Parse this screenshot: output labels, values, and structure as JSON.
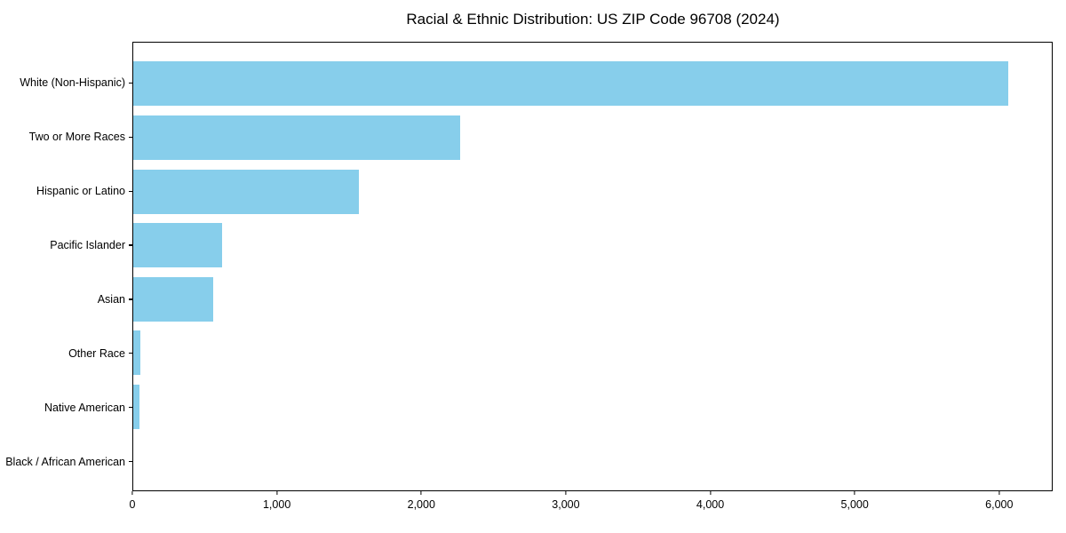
{
  "chart_data": {
    "type": "bar",
    "orientation": "horizontal",
    "title": "Racial & Ethnic Distribution: US ZIP Code 96708 (2024)",
    "categories": [
      "White (Non-Hispanic)",
      "Two or More Races",
      "Hispanic or Latino",
      "Pacific Islander",
      "Asian",
      "Other Race",
      "Native American",
      "Black / African American"
    ],
    "values": [
      6070,
      2270,
      1565,
      615,
      555,
      48,
      45,
      0
    ],
    "xlabel": "",
    "ylabel": "",
    "xlim": [
      0,
      6370
    ],
    "x_ticks": [
      0,
      1000,
      2000,
      3000,
      4000,
      5000,
      6000
    ],
    "x_tick_labels": [
      "0",
      "1,000",
      "2,000",
      "3,000",
      "4,000",
      "5,000",
      "6,000"
    ],
    "bar_color": "#87CEEB",
    "axis_color": "#000000",
    "grid": false,
    "legend": null
  }
}
